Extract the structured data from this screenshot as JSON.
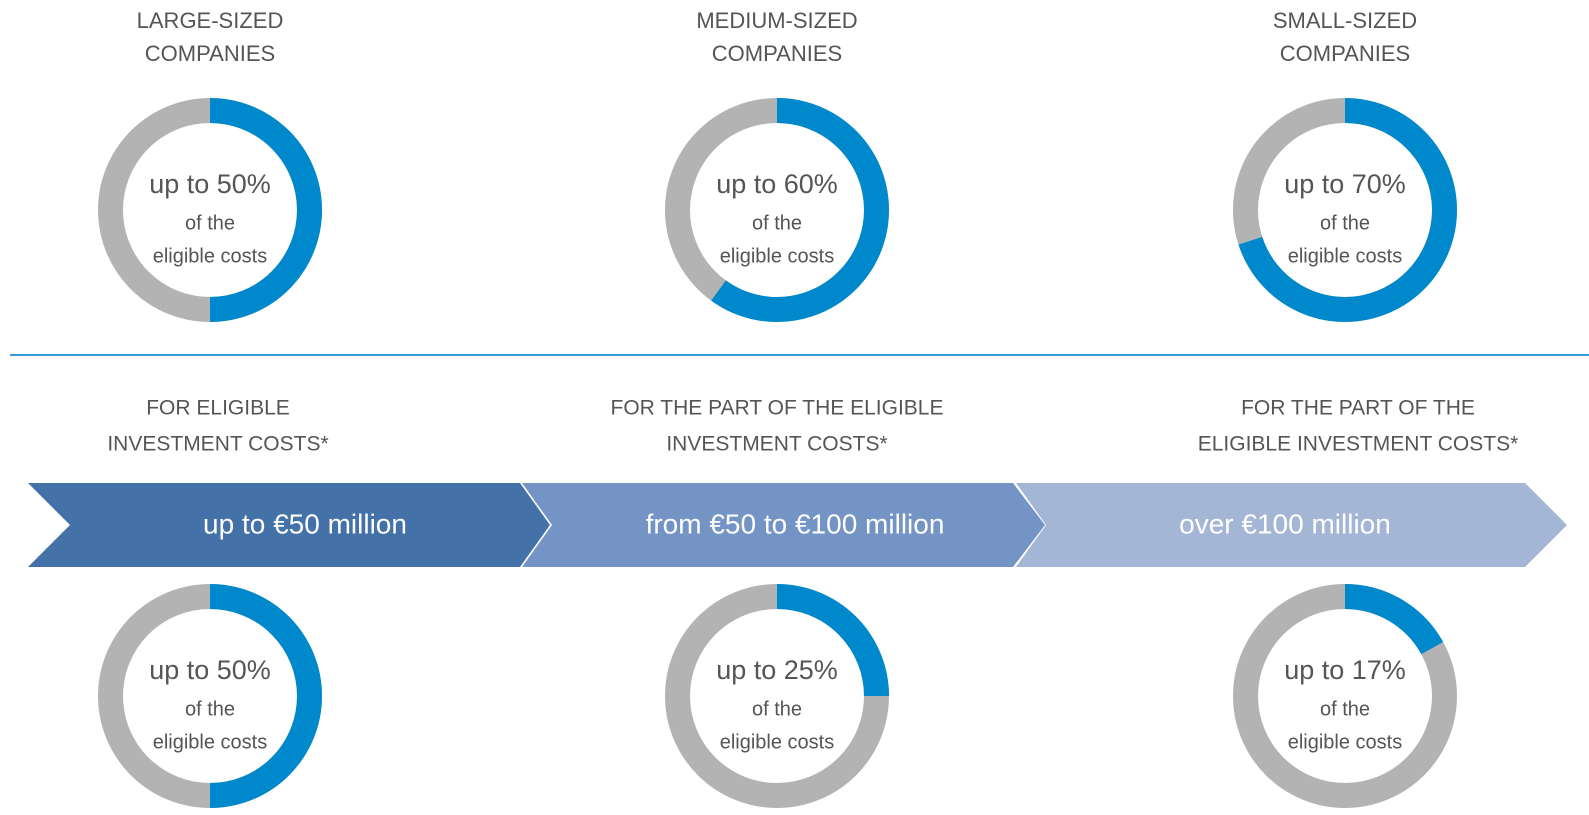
{
  "colors": {
    "filled": "#0088cc",
    "rest": "#b3b3b3",
    "bands": [
      "#4472a8",
      "#7394c4",
      "#a3b6d6"
    ],
    "divider": "#3a9ad9"
  },
  "top": [
    {
      "heading_lines": [
        "LARGE-SIZED",
        "COMPANIES"
      ],
      "donut": {
        "value": 50,
        "label": "up to 50%",
        "caption_lines": [
          "of the",
          "eligible costs"
        ]
      }
    },
    {
      "heading_lines": [
        "MEDIUM-SIZED",
        "COMPANIES"
      ],
      "donut": {
        "value": 60,
        "label": "up to 60%",
        "caption_lines": [
          "of the",
          "eligible costs"
        ]
      }
    },
    {
      "heading_lines": [
        "SMALL-SIZED",
        "COMPANIES"
      ],
      "donut": {
        "value": 70,
        "label": "up to 70%",
        "caption_lines": [
          "of the",
          "eligible costs"
        ]
      }
    }
  ],
  "bottom": [
    {
      "heading_lines": [
        "FOR ELIGIBLE",
        "INVESTMENT COSTS*"
      ],
      "band": "up to €50 million",
      "donut": {
        "value": 50,
        "label": "up to 50%",
        "caption_lines": [
          "of the",
          "eligible costs"
        ]
      }
    },
    {
      "heading_lines": [
        "FOR THE PART OF THE ELIGIBLE",
        "INVESTMENT COSTS*"
      ],
      "band": "from €50 to €100 million",
      "donut": {
        "value": 25,
        "label": "up to 25%",
        "caption_lines": [
          "of the",
          "eligible costs"
        ]
      }
    },
    {
      "heading_lines": [
        "FOR THE PART OF THE",
        "ELIGIBLE INVESTMENT COSTS*"
      ],
      "band": "over  €100 million",
      "donut": {
        "value": 17,
        "label": "up to 17%",
        "caption_lines": [
          "of the",
          "eligible costs"
        ]
      }
    }
  ]
}
